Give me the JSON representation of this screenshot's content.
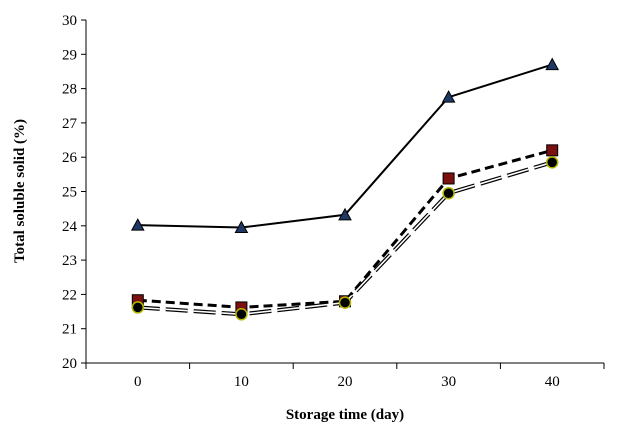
{
  "chart_data": {
    "type": "line",
    "title": "",
    "xlabel": "Storage time (day)",
    "ylabel": "Total soluble solid (%)",
    "categories": [
      "0",
      "10",
      "20",
      "30",
      "40"
    ],
    "x_ticks": [
      "0",
      "10",
      "20",
      "30",
      "40"
    ],
    "y_ticks": [
      "20",
      "21",
      "22",
      "23",
      "24",
      "25",
      "26",
      "27",
      "28",
      "29",
      "30"
    ],
    "ylim": [
      20,
      30
    ],
    "grid": false,
    "legend": "none",
    "series": [
      {
        "values": [
          24.02,
          23.95,
          24.32,
          27.75,
          28.7
        ],
        "line_style": "solid",
        "line_color": "#000000",
        "marker": "triangle",
        "marker_color": "#1f3864"
      },
      {
        "values": [
          21.83,
          21.62,
          21.8,
          25.38,
          26.2
        ],
        "line_style": "dashed",
        "line_color": "#000000",
        "marker": "square",
        "marker_color": "#7b1010"
      },
      {
        "values": [
          21.62,
          21.42,
          21.76,
          24.95,
          25.85
        ],
        "line_style": "double-dashed",
        "line_color": "#000000",
        "marker": "circle",
        "marker_color": "#000000",
        "marker_edge": "#b5b800"
      }
    ]
  }
}
